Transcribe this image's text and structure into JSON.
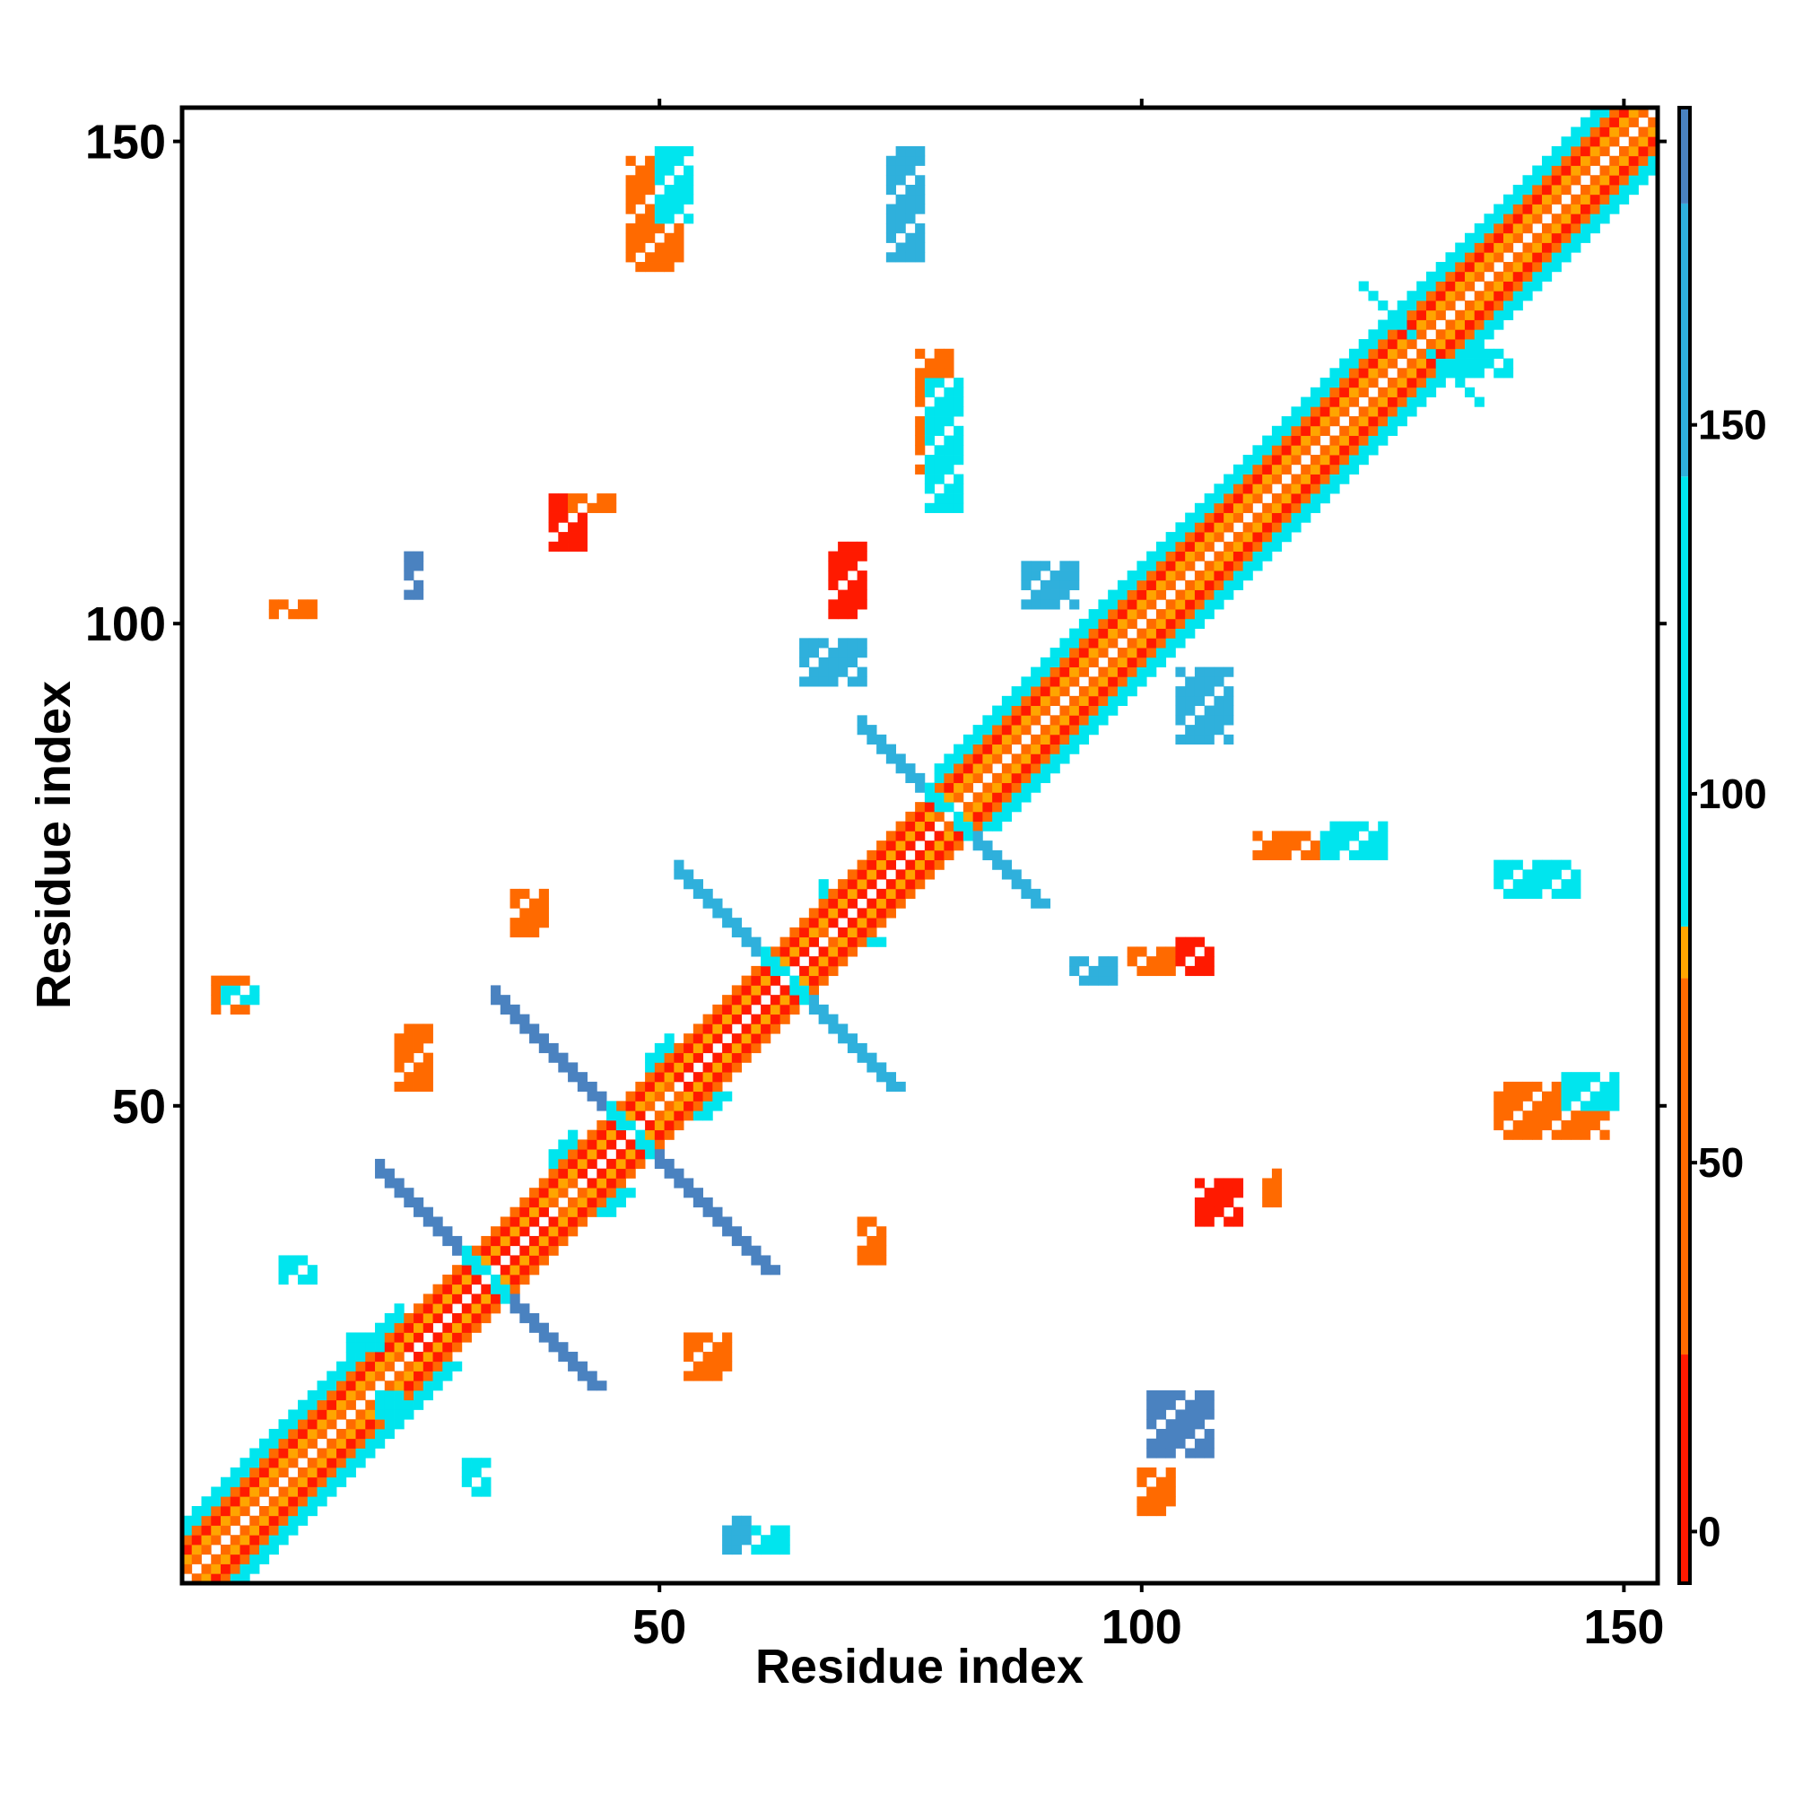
{
  "chart_data": {
    "type": "heatmap",
    "xlabel": "Residue index",
    "ylabel": "Residue index",
    "xlim": [
      1,
      153
    ],
    "ylim": [
      1,
      153
    ],
    "x_ticks": [
      50,
      100,
      150
    ],
    "y_ticks": [
      50,
      100,
      150
    ],
    "colorbar": {
      "ticks": [
        0,
        50,
        100,
        150
      ],
      "range": [
        -7,
        193
      ],
      "bands": [
        {
          "from": -7,
          "to": 24,
          "color": "#ff1a00"
        },
        {
          "from": 24,
          "to": 75,
          "color": "#ff6a00"
        },
        {
          "from": 75,
          "to": 82,
          "color": "#ffa500"
        },
        {
          "from": 82,
          "to": 143,
          "color": "#00e5ee"
        },
        {
          "from": 143,
          "to": 180,
          "color": "#2fb0dc"
        },
        {
          "from": 180,
          "to": 193,
          "color": "#4a82c0"
        }
      ],
      "top_color": "#ffffff"
    },
    "palette": {
      "red": "#ff1a00",
      "orange": "#ff6a00",
      "amber": "#ffa500",
      "cyan": "#00e5ee",
      "skyblue": "#2fb0dc",
      "steelblue": "#4a82c0"
    },
    "diagonal_pattern": [
      {
        "offset": 1,
        "color": "orange"
      },
      {
        "offset": 2,
        "color": "amber"
      },
      {
        "offset": 3,
        "color": "red"
      },
      {
        "offset": 4,
        "color": "orange"
      },
      {
        "offset": 5,
        "color": "cyan"
      },
      {
        "offset": 6,
        "color": "cyan"
      }
    ],
    "helix_segments": [
      [
        24,
        38
      ],
      [
        42,
        48
      ],
      [
        52,
        66
      ],
      [
        68,
        78
      ]
    ],
    "cross_features": [
      {
        "center": [
          32,
          32
        ],
        "half_length": 11,
        "width": 2,
        "color": "steelblue"
      },
      {
        "center": [
          47,
          47
        ],
        "half_length": 14,
        "width": 2,
        "color": "steelblue"
      },
      {
        "center": [
          63,
          63
        ],
        "half_length": 11,
        "width": 2,
        "color": "skyblue"
      },
      {
        "center": [
          80,
          80
        ],
        "half_length": 9,
        "width": 2,
        "color": "skyblue"
      },
      {
        "center": [
          129,
          129
        ],
        "half_length": 6,
        "width": 1,
        "color": "cyan"
      }
    ],
    "blocks": [
      {
        "x": [
          47,
          52
        ],
        "y": [
          137,
          148
        ],
        "color": "orange"
      },
      {
        "x": [
          50,
          53
        ],
        "y": [
          142,
          149
        ],
        "color": "cyan"
      },
      {
        "x": [
          137,
          148
        ],
        "y": [
          47,
          52
        ],
        "color": "orange"
      },
      {
        "x": [
          144,
          149
        ],
        "y": [
          50,
          53
        ],
        "color": "cyan"
      },
      {
        "x": [
          74,
          77
        ],
        "y": [
          138,
          149
        ],
        "color": "skyblue"
      },
      {
        "x": [
          77,
          80
        ],
        "y": [
          116,
          128
        ],
        "color": "orange"
      },
      {
        "x": [
          78,
          81
        ],
        "y": [
          112,
          125
        ],
        "color": "cyan"
      },
      {
        "x": [
          39,
          42
        ],
        "y": [
          108,
          113
        ],
        "color": "red"
      },
      {
        "x": [
          41,
          45
        ],
        "y": [
          112,
          113
        ],
        "color": "orange"
      },
      {
        "x": [
          112,
          118
        ],
        "y": [
          76,
          78
        ],
        "color": "orange"
      },
      {
        "x": [
          119,
          125
        ],
        "y": [
          76,
          79
        ],
        "color": "cyan"
      },
      {
        "x": [
          137,
          145
        ],
        "y": [
          72,
          75
        ],
        "color": "cyan"
      },
      {
        "x": [
          65,
          71
        ],
        "y": [
          94,
          98
        ],
        "color": "skyblue"
      },
      {
        "x": [
          93,
          97
        ],
        "y": [
          63,
          65
        ],
        "color": "skyblue"
      },
      {
        "x": [
          99,
          104
        ],
        "y": [
          64,
          66
        ],
        "color": "orange"
      },
      {
        "x": [
          104,
          107
        ],
        "y": [
          64,
          67
        ],
        "color": "red"
      },
      {
        "x": [
          106,
          110
        ],
        "y": [
          38,
          42
        ],
        "color": "red"
      },
      {
        "x": [
          113,
          114
        ],
        "y": [
          40,
          43
        ],
        "color": "orange"
      },
      {
        "x": [
          71,
          73
        ],
        "y": [
          34,
          38
        ],
        "color": "orange"
      },
      {
        "x": [
          53,
          57
        ],
        "y": [
          22,
          26
        ],
        "color": "orange"
      },
      {
        "x": [
          59,
          63
        ],
        "y": [
          4,
          6
        ],
        "color": "cyan"
      },
      {
        "x": [
          21,
          23
        ],
        "y": [
          18,
          20
        ],
        "color": "cyan"
      },
      {
        "x": [
          18,
          21
        ],
        "y": [
          25,
          26
        ],
        "color": "cyan"
      },
      {
        "x": [
          35,
          38
        ],
        "y": [
          68,
          72
        ],
        "color": "orange"
      },
      {
        "x": [
          23,
          26
        ],
        "y": [
          52,
          58
        ],
        "color": "orange"
      },
      {
        "x": [
          4,
          7
        ],
        "y": [
          60,
          63
        ],
        "color": "orange"
      },
      {
        "x": [
          5,
          8
        ],
        "y": [
          61,
          62
        ],
        "color": "cyan"
      },
      {
        "x": [
          11,
          14
        ],
        "y": [
          32,
          34
        ],
        "color": "cyan"
      },
      {
        "x": [
          30,
          32
        ],
        "y": [
          10,
          13
        ],
        "color": "cyan"
      },
      {
        "x": [
          24,
          25
        ],
        "y": [
          103,
          107
        ],
        "color": "steelblue"
      },
      {
        "x": [
          10,
          14
        ],
        "y": [
          101,
          102
        ],
        "color": "orange"
      },
      {
        "x": [
          88,
          93
        ],
        "y": [
          102,
          106
        ],
        "color": "skyblue"
      },
      {
        "x": [
          104,
          109
        ],
        "y": [
          88,
          95
        ],
        "color": "skyblue"
      },
      {
        "x": [
          68,
          71
        ],
        "y": [
          101,
          108
        ],
        "color": "red"
      },
      {
        "x": [
          57,
          59
        ],
        "y": [
          4,
          7
        ],
        "color": "skyblue"
      },
      {
        "x": [
          101,
          107
        ],
        "y": [
          14,
          20
        ],
        "color": "steelblue"
      },
      {
        "x": [
          100,
          103
        ],
        "y": [
          8,
          12
        ],
        "color": "orange"
      },
      {
        "x": [
          133,
          138
        ],
        "y": [
          126,
          128
        ],
        "color": "cyan"
      }
    ]
  }
}
